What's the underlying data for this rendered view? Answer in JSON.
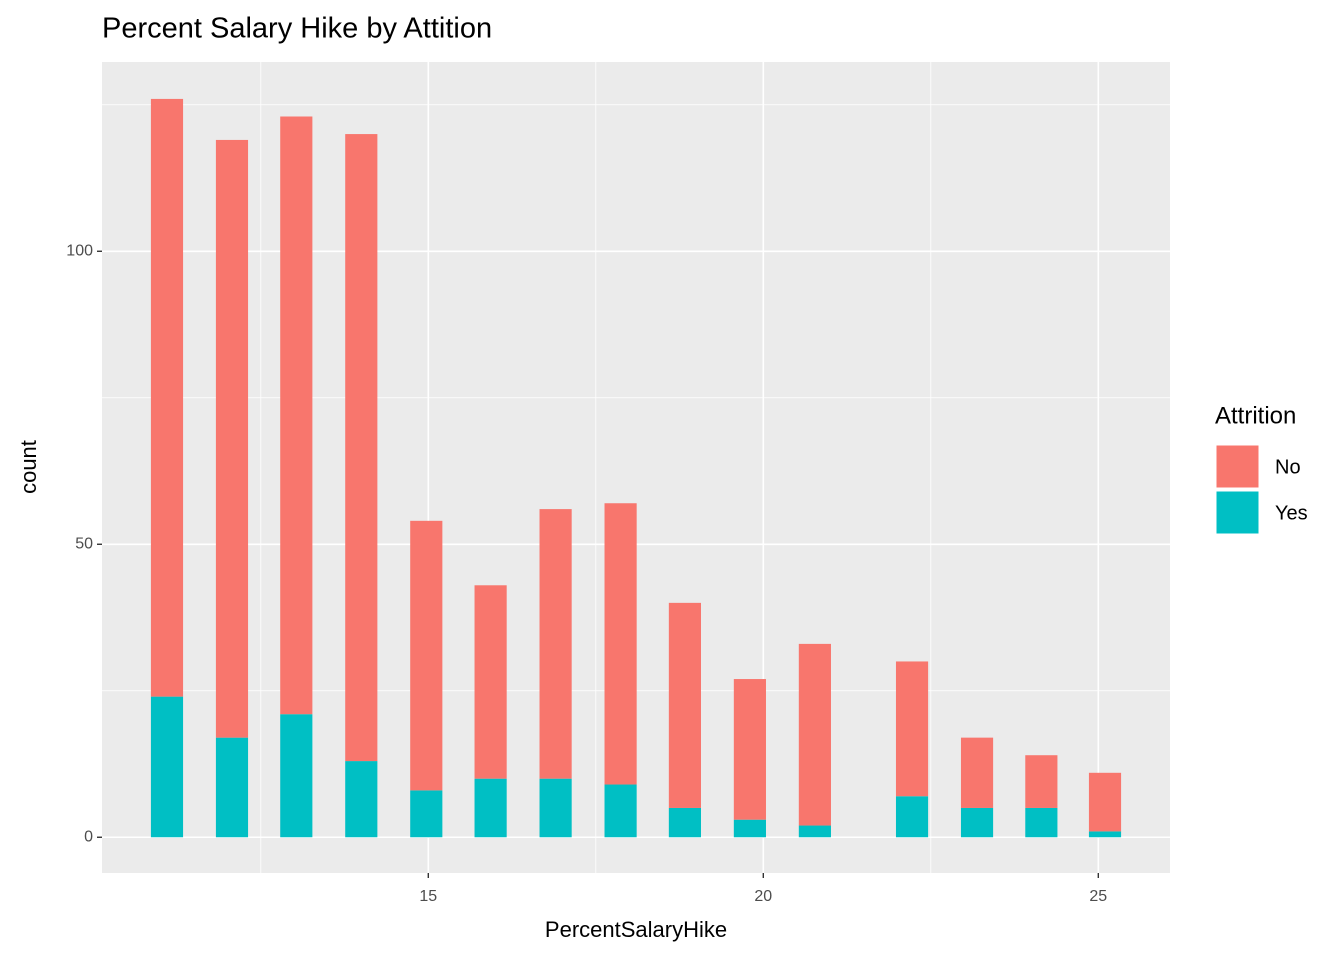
{
  "chart_data": {
    "type": "stacked_bar",
    "title": "Percent Salary Hike by Attition",
    "xlabel": "PercentSalaryHike",
    "ylabel": "count",
    "x": [
      11.1,
      12.07,
      13.03,
      14.0,
      14.97,
      15.93,
      16.9,
      17.87,
      18.83,
      19.8,
      20.77,
      22.22,
      23.19,
      24.15,
      25.1
    ],
    "series": [
      {
        "name": "Yes",
        "color": "#00bfc4",
        "values": [
          24,
          17,
          21,
          13,
          8,
          10,
          10,
          9,
          5,
          3,
          2,
          7,
          5,
          5,
          1
        ]
      },
      {
        "name": "No",
        "color": "#f8766d",
        "values": [
          102,
          102,
          102,
          107,
          46,
          33,
          46,
          48,
          35,
          24,
          31,
          23,
          12,
          9,
          10
        ]
      }
    ],
    "xlim": [
      10.13,
      26.07
    ],
    "ylim": [
      -6.1,
      132.3
    ],
    "xticks": [
      15,
      20,
      25
    ],
    "yticks": [
      0,
      50,
      100
    ],
    "x_minor_breaks": [
      12.5,
      17.5,
      22.5
    ],
    "y_minor_breaks": [
      25,
      75,
      125
    ],
    "legend_title": "Attrition",
    "legend_order": [
      "No",
      "Yes"
    ],
    "legend_position": "right",
    "grid": true
  }
}
